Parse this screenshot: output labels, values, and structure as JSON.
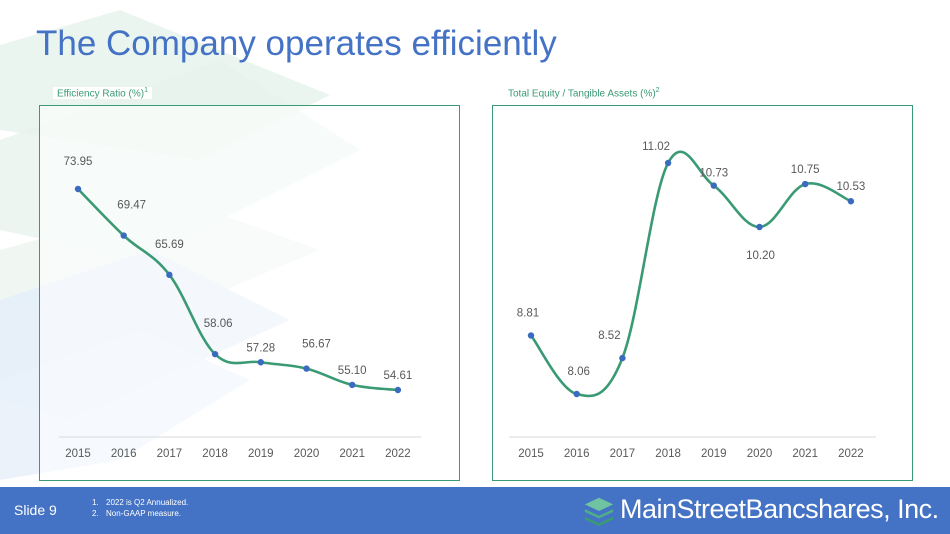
{
  "slide": {
    "title": "The Company operates efficiently",
    "slide_number": "Slide 9",
    "footnotes": [
      {
        "num": "1.",
        "text": "2022 is Q2 Annualized."
      },
      {
        "num": "2.",
        "text": "Non-GAAP measure."
      }
    ],
    "logo_text": "MainStreetBancshares, Inc."
  },
  "colors": {
    "title": "#4472c4",
    "line": "#3a9a74",
    "marker": "#3b6bbf",
    "footer": "#4472c4",
    "label_text": "#595959",
    "panel_border": "#3a9a74"
  },
  "chart_data": [
    {
      "type": "line",
      "title": "Efficiency Ratio (%)",
      "title_superscript": "1",
      "categories": [
        "2015",
        "2016",
        "2017",
        "2018",
        "2019",
        "2020",
        "2021",
        "2022"
      ],
      "series": [
        {
          "values": [
            73.95,
            69.47,
            65.69,
            58.06,
            57.28,
            56.67,
            55.1,
            54.61
          ],
          "labels": [
            "73.95",
            "69.47",
            "65.69",
            "58.06",
            "57.28",
            "56.67",
            "55.10",
            "54.61"
          ]
        }
      ],
      "smooth": true,
      "grid": false
    },
    {
      "type": "line",
      "title": "Total Equity / Tangible Assets (%)",
      "title_superscript": "2",
      "categories": [
        "2015",
        "2016",
        "2017",
        "2018",
        "2019",
        "2020",
        "2021",
        "2022"
      ],
      "series": [
        {
          "values": [
            8.81,
            8.06,
            8.52,
            11.02,
            10.73,
            10.2,
            10.75,
            10.53
          ],
          "labels": [
            "8.81",
            "8.06",
            "8.52",
            "11.02",
            "10.73",
            "10.20",
            "10.75",
            "10.53"
          ]
        }
      ],
      "smooth": true,
      "grid": false
    }
  ]
}
